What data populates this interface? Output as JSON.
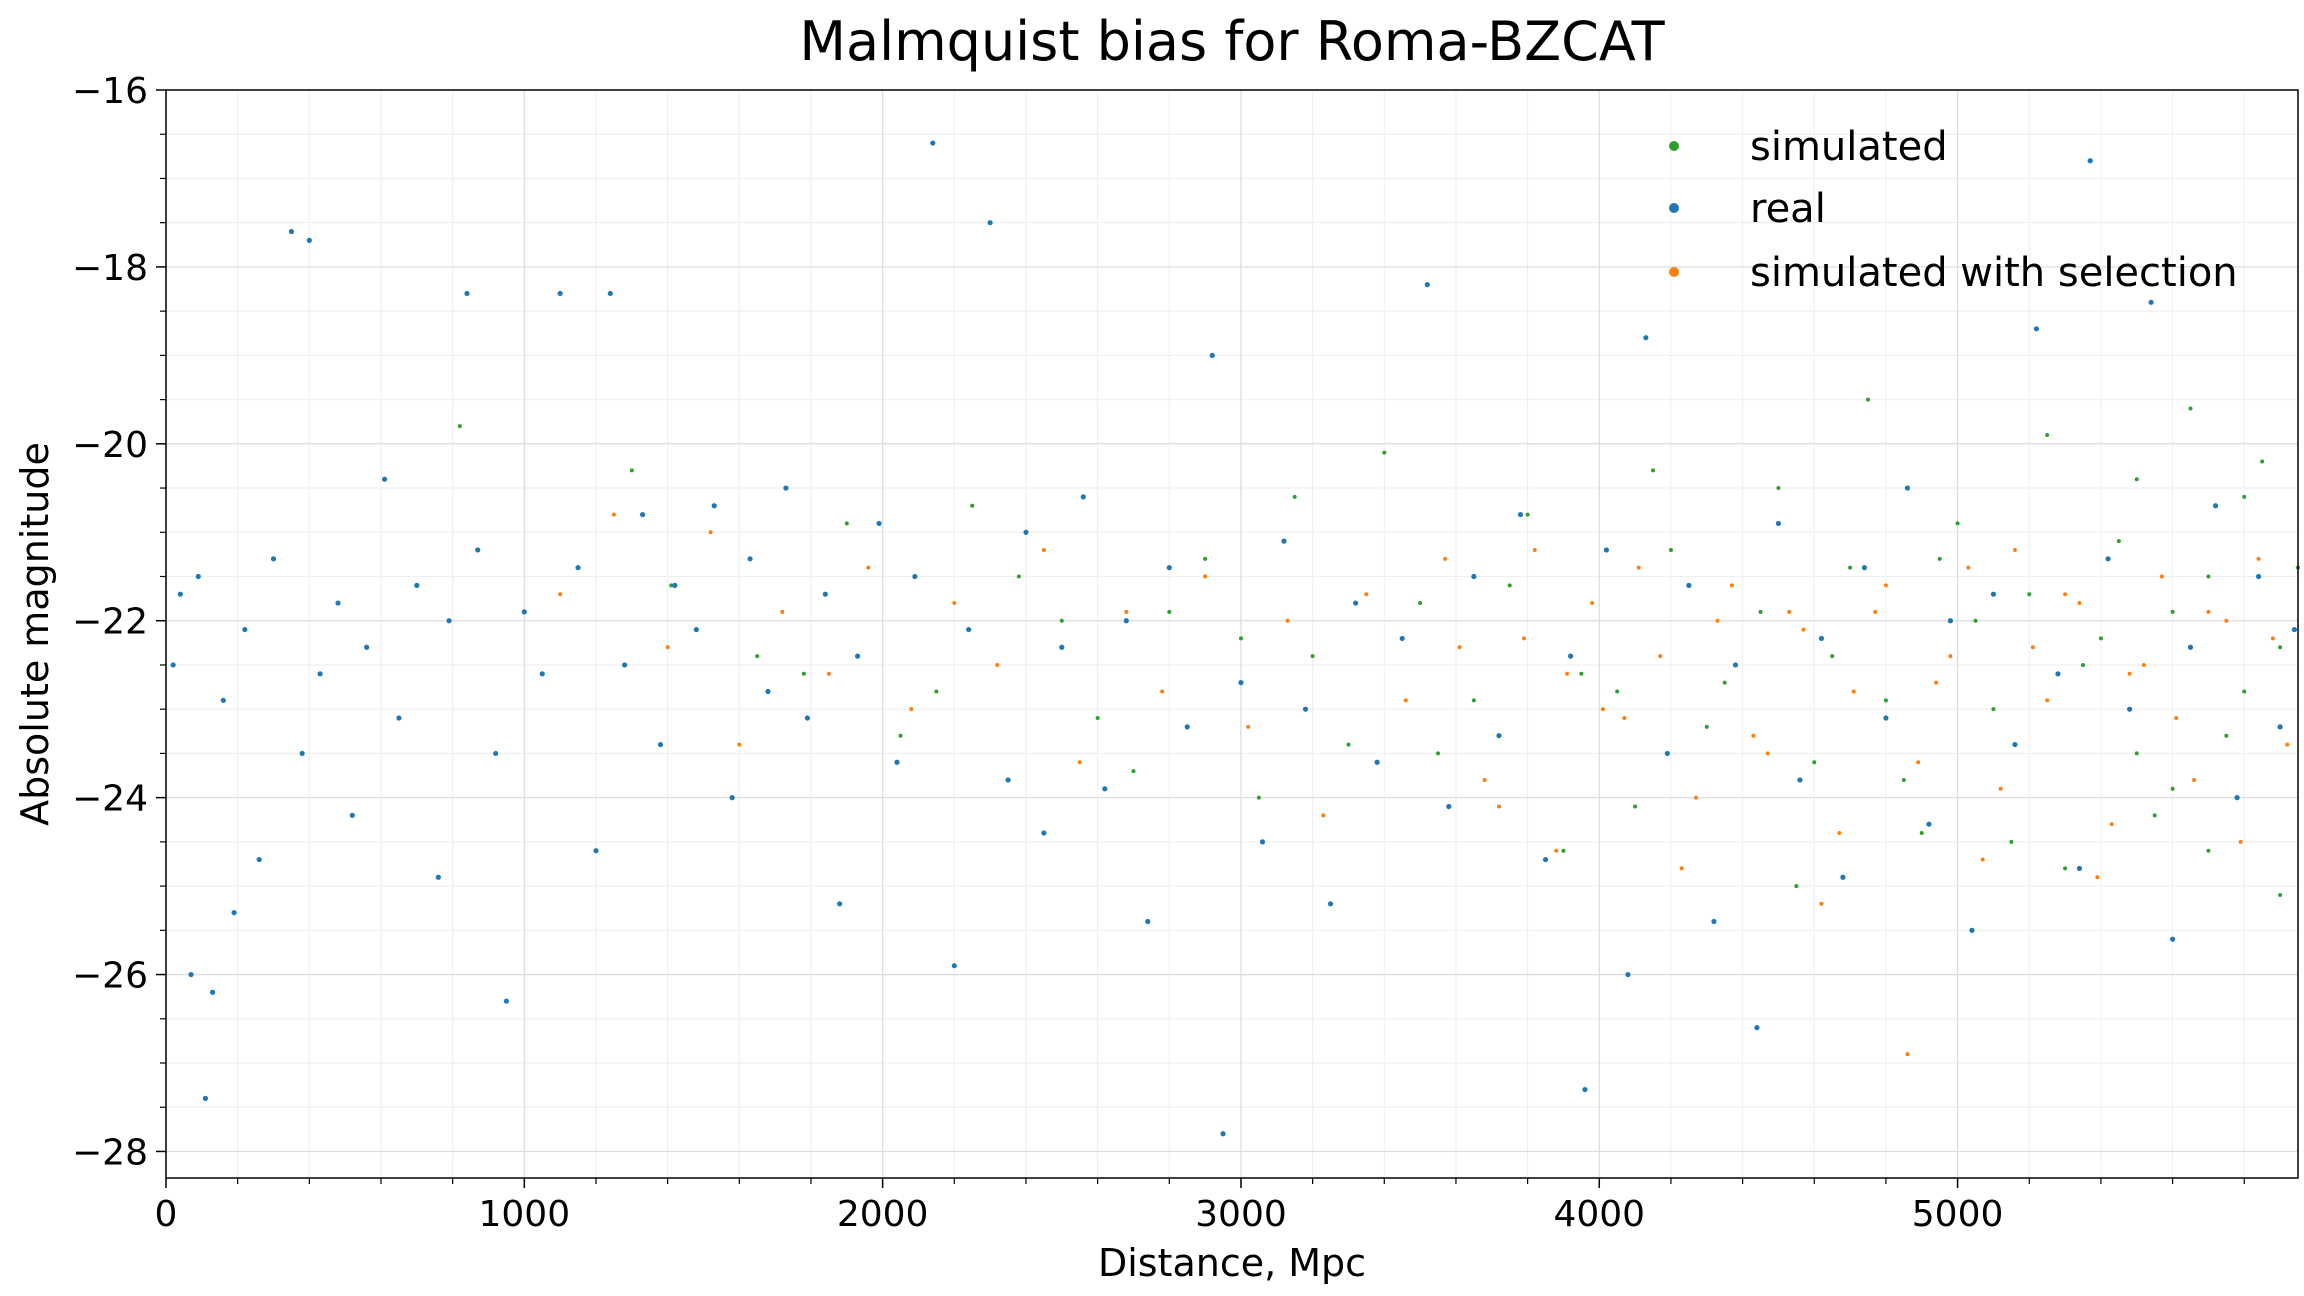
{
  "chart_data": {
    "type": "scatter",
    "title": "Malmquist bias for Roma-BZCAT",
    "xlabel": "Distance, Mpc",
    "ylabel": "Absolute magnitude",
    "xlim": [
      0,
      5950
    ],
    "ylim": [
      -28.3,
      -16
    ],
    "x_ticks": [
      0,
      1000,
      2000,
      3000,
      4000,
      5000
    ],
    "x_tick_labels": [
      "0",
      "1000",
      "2000",
      "3000",
      "4000",
      "5000"
    ],
    "y_ticks": [
      -16,
      -18,
      -20,
      -22,
      -24,
      -26,
      -28
    ],
    "y_tick_labels": [
      "−16",
      "−18",
      "−20",
      "−22",
      "−24",
      "−26",
      "−28"
    ],
    "grid": true,
    "minor_grid": true,
    "legend_position": "top-right",
    "series": [
      {
        "name": "simulated",
        "color": "#2ca02c",
        "points": [
          [
            1410,
            -21.6
          ],
          [
            1650,
            -22.4
          ],
          [
            1900,
            -20.9
          ],
          [
            2150,
            -22.8
          ],
          [
            2380,
            -21.5
          ],
          [
            2600,
            -23.1
          ],
          [
            2800,
            -21.9
          ],
          [
            3000,
            -22.2
          ],
          [
            3150,
            -20.6
          ],
          [
            3300,
            -23.4
          ],
          [
            3500,
            -21.8
          ],
          [
            3650,
            -22.9
          ],
          [
            3800,
            -20.8
          ],
          [
            3950,
            -22.6
          ],
          [
            4100,
            -24.1
          ],
          [
            4200,
            -21.2
          ],
          [
            4350,
            -22.7
          ],
          [
            4500,
            -20.5
          ],
          [
            4600,
            -23.6
          ],
          [
            4700,
            -21.4
          ],
          [
            4800,
            -22.9
          ],
          [
            4900,
            -24.4
          ],
          [
            5000,
            -20.9
          ],
          [
            5100,
            -23.0
          ],
          [
            5200,
            -21.7
          ],
          [
            5300,
            -24.8
          ],
          [
            5400,
            -22.2
          ],
          [
            5500,
            -20.4
          ],
          [
            5600,
            -23.9
          ],
          [
            5700,
            -21.5
          ],
          [
            5800,
            -22.8
          ],
          [
            5900,
            -25.1
          ],
          [
            5850,
            -20.2
          ],
          [
            5750,
            -23.3
          ],
          [
            5650,
            -19.6
          ],
          [
            5550,
            -24.2
          ],
          [
            5450,
            -21.1
          ],
          [
            5350,
            -22.5
          ],
          [
            5250,
            -19.9
          ],
          [
            5150,
            -24.5
          ],
          [
            5050,
            -22.0
          ],
          [
            4950,
            -21.3
          ],
          [
            4850,
            -23.8
          ],
          [
            4750,
            -19.5
          ],
          [
            4650,
            -22.4
          ],
          [
            4550,
            -25.0
          ],
          [
            4450,
            -21.9
          ],
          [
            4300,
            -23.2
          ],
          [
            4150,
            -20.3
          ],
          [
            4050,
            -22.8
          ],
          [
            3900,
            -24.6
          ],
          [
            3750,
            -21.6
          ],
          [
            3550,
            -23.5
          ],
          [
            3400,
            -20.1
          ],
          [
            3200,
            -22.4
          ],
          [
            3050,
            -24.0
          ],
          [
            2900,
            -21.3
          ],
          [
            2700,
            -23.7
          ],
          [
            2500,
            -22.0
          ],
          [
            2250,
            -20.7
          ],
          [
            2050,
            -23.3
          ],
          [
            1780,
            -22.6
          ],
          [
            1300,
            -20.3
          ],
          [
            820,
            -19.8
          ],
          [
            5950,
            -21.4
          ],
          [
            5900,
            -22.3
          ],
          [
            5800,
            -20.6
          ],
          [
            5700,
            -24.6
          ],
          [
            5600,
            -21.9
          ],
          [
            5500,
            -23.5
          ]
        ]
      },
      {
        "name": "real",
        "color": "#1f77b4",
        "points": [
          [
            20,
            -22.5
          ],
          [
            40,
            -21.7
          ],
          [
            70,
            -26.0
          ],
          [
            90,
            -21.5
          ],
          [
            110,
            -27.4
          ],
          [
            130,
            -26.2
          ],
          [
            160,
            -22.9
          ],
          [
            190,
            -25.3
          ],
          [
            220,
            -22.1
          ],
          [
            260,
            -24.7
          ],
          [
            300,
            -21.3
          ],
          [
            350,
            -17.6
          ],
          [
            380,
            -23.5
          ],
          [
            400,
            -17.7
          ],
          [
            430,
            -22.6
          ],
          [
            480,
            -21.8
          ],
          [
            520,
            -24.2
          ],
          [
            560,
            -22.3
          ],
          [
            610,
            -20.4
          ],
          [
            650,
            -23.1
          ],
          [
            700,
            -21.6
          ],
          [
            760,
            -24.9
          ],
          [
            790,
            -22.0
          ],
          [
            840,
            -18.3
          ],
          [
            870,
            -21.2
          ],
          [
            920,
            -23.5
          ],
          [
            950,
            -26.3
          ],
          [
            1000,
            -21.9
          ],
          [
            1050,
            -22.6
          ],
          [
            1100,
            -18.3
          ],
          [
            1150,
            -21.4
          ],
          [
            1200,
            -24.6
          ],
          [
            1240,
            -18.3
          ],
          [
            1280,
            -22.5
          ],
          [
            1330,
            -20.8
          ],
          [
            1380,
            -23.4
          ],
          [
            1420,
            -21.6
          ],
          [
            1480,
            -22.1
          ],
          [
            1530,
            -20.7
          ],
          [
            1580,
            -24.0
          ],
          [
            1630,
            -21.3
          ],
          [
            1680,
            -22.8
          ],
          [
            1730,
            -20.5
          ],
          [
            1790,
            -23.1
          ],
          [
            1840,
            -21.7
          ],
          [
            1880,
            -25.2
          ],
          [
            1930,
            -22.4
          ],
          [
            1990,
            -20.9
          ],
          [
            2040,
            -23.6
          ],
          [
            2090,
            -21.5
          ],
          [
            2140,
            -16.6
          ],
          [
            2200,
            -25.9
          ],
          [
            2240,
            -22.1
          ],
          [
            2300,
            -17.5
          ],
          [
            2350,
            -23.8
          ],
          [
            2400,
            -21.0
          ],
          [
            2450,
            -24.4
          ],
          [
            2500,
            -22.3
          ],
          [
            2560,
            -20.6
          ],
          [
            2620,
            -23.9
          ],
          [
            2680,
            -22.0
          ],
          [
            2740,
            -25.4
          ],
          [
            2800,
            -21.4
          ],
          [
            2850,
            -23.2
          ],
          [
            2920,
            -19.0
          ],
          [
            2950,
            -27.8
          ],
          [
            3000,
            -22.7
          ],
          [
            3060,
            -24.5
          ],
          [
            3120,
            -21.1
          ],
          [
            3180,
            -23.0
          ],
          [
            3250,
            -25.2
          ],
          [
            3320,
            -21.8
          ],
          [
            3380,
            -23.6
          ],
          [
            3450,
            -22.2
          ],
          [
            3520,
            -18.2
          ],
          [
            3580,
            -24.1
          ],
          [
            3650,
            -21.5
          ],
          [
            3720,
            -23.3
          ],
          [
            3780,
            -20.8
          ],
          [
            3850,
            -24.7
          ],
          [
            3920,
            -22.4
          ],
          [
            3960,
            -27.3
          ],
          [
            4020,
            -21.2
          ],
          [
            4080,
            -26.0
          ],
          [
            4130,
            -18.8
          ],
          [
            4190,
            -23.5
          ],
          [
            4250,
            -21.6
          ],
          [
            4320,
            -25.4
          ],
          [
            4380,
            -22.5
          ],
          [
            4440,
            -26.6
          ],
          [
            4500,
            -20.9
          ],
          [
            4560,
            -23.8
          ],
          [
            4620,
            -22.2
          ],
          [
            4680,
            -24.9
          ],
          [
            4740,
            -21.4
          ],
          [
            4800,
            -23.1
          ],
          [
            4860,
            -20.5
          ],
          [
            4920,
            -24.3
          ],
          [
            4980,
            -22.0
          ],
          [
            5040,
            -25.5
          ],
          [
            5100,
            -21.7
          ],
          [
            5160,
            -23.4
          ],
          [
            5220,
            -18.7
          ],
          [
            5280,
            -22.6
          ],
          [
            5340,
            -24.8
          ],
          [
            5370,
            -16.8
          ],
          [
            5420,
            -21.3
          ],
          [
            5480,
            -23.0
          ],
          [
            5540,
            -18.4
          ],
          [
            5600,
            -25.6
          ],
          [
            5650,
            -22.3
          ],
          [
            5720,
            -20.7
          ],
          [
            5780,
            -24.0
          ],
          [
            5840,
            -21.5
          ],
          [
            5900,
            -23.2
          ],
          [
            5940,
            -22.1
          ]
        ]
      },
      {
        "name": "simulated with selection",
        "color": "#ff7f0e",
        "points": [
          [
            1100,
            -21.7
          ],
          [
            1250,
            -20.8
          ],
          [
            1400,
            -22.3
          ],
          [
            1520,
            -21.0
          ],
          [
            1600,
            -23.4
          ],
          [
            1720,
            -21.9
          ],
          [
            1850,
            -22.6
          ],
          [
            1960,
            -21.4
          ],
          [
            2080,
            -23.0
          ],
          [
            2200,
            -21.8
          ],
          [
            2320,
            -22.5
          ],
          [
            2450,
            -21.2
          ],
          [
            2550,
            -23.6
          ],
          [
            2680,
            -21.9
          ],
          [
            2780,
            -22.8
          ],
          [
            2900,
            -21.5
          ],
          [
            3020,
            -23.2
          ],
          [
            3130,
            -22.0
          ],
          [
            3230,
            -24.2
          ],
          [
            3350,
            -21.7
          ],
          [
            3460,
            -22.9
          ],
          [
            3570,
            -21.3
          ],
          [
            3680,
            -23.8
          ],
          [
            3790,
            -22.2
          ],
          [
            3880,
            -24.6
          ],
          [
            3980,
            -21.8
          ],
          [
            4070,
            -23.1
          ],
          [
            4170,
            -22.4
          ],
          [
            4270,
            -24.0
          ],
          [
            4370,
            -21.6
          ],
          [
            4470,
            -23.5
          ],
          [
            4570,
            -22.1
          ],
          [
            4670,
            -24.4
          ],
          [
            4770,
            -21.9
          ],
          [
            4860,
            -26.9
          ],
          [
            4940,
            -22.7
          ],
          [
            5030,
            -21.4
          ],
          [
            5120,
            -23.9
          ],
          [
            5210,
            -22.3
          ],
          [
            5300,
            -21.7
          ],
          [
            5390,
            -24.9
          ],
          [
            5480,
            -22.6
          ],
          [
            5570,
            -21.5
          ],
          [
            5660,
            -23.8
          ],
          [
            5750,
            -22.0
          ],
          [
            5840,
            -21.3
          ],
          [
            5920,
            -23.4
          ],
          [
            5880,
            -22.2
          ],
          [
            5790,
            -24.5
          ],
          [
            5700,
            -21.9
          ],
          [
            5610,
            -23.1
          ],
          [
            5520,
            -22.5
          ],
          [
            5430,
            -24.3
          ],
          [
            5340,
            -21.8
          ],
          [
            5250,
            -22.9
          ],
          [
            5160,
            -21.2
          ],
          [
            5070,
            -24.7
          ],
          [
            4980,
            -22.4
          ],
          [
            4890,
            -23.6
          ],
          [
            4800,
            -21.6
          ],
          [
            4710,
            -22.8
          ],
          [
            4620,
            -25.2
          ],
          [
            4530,
            -21.9
          ],
          [
            4430,
            -23.3
          ],
          [
            4330,
            -22.0
          ],
          [
            4230,
            -24.8
          ],
          [
            4110,
            -21.4
          ],
          [
            4010,
            -23.0
          ],
          [
            3910,
            -22.6
          ],
          [
            3820,
            -21.2
          ],
          [
            3720,
            -24.1
          ],
          [
            3610,
            -22.3
          ]
        ]
      }
    ]
  }
}
